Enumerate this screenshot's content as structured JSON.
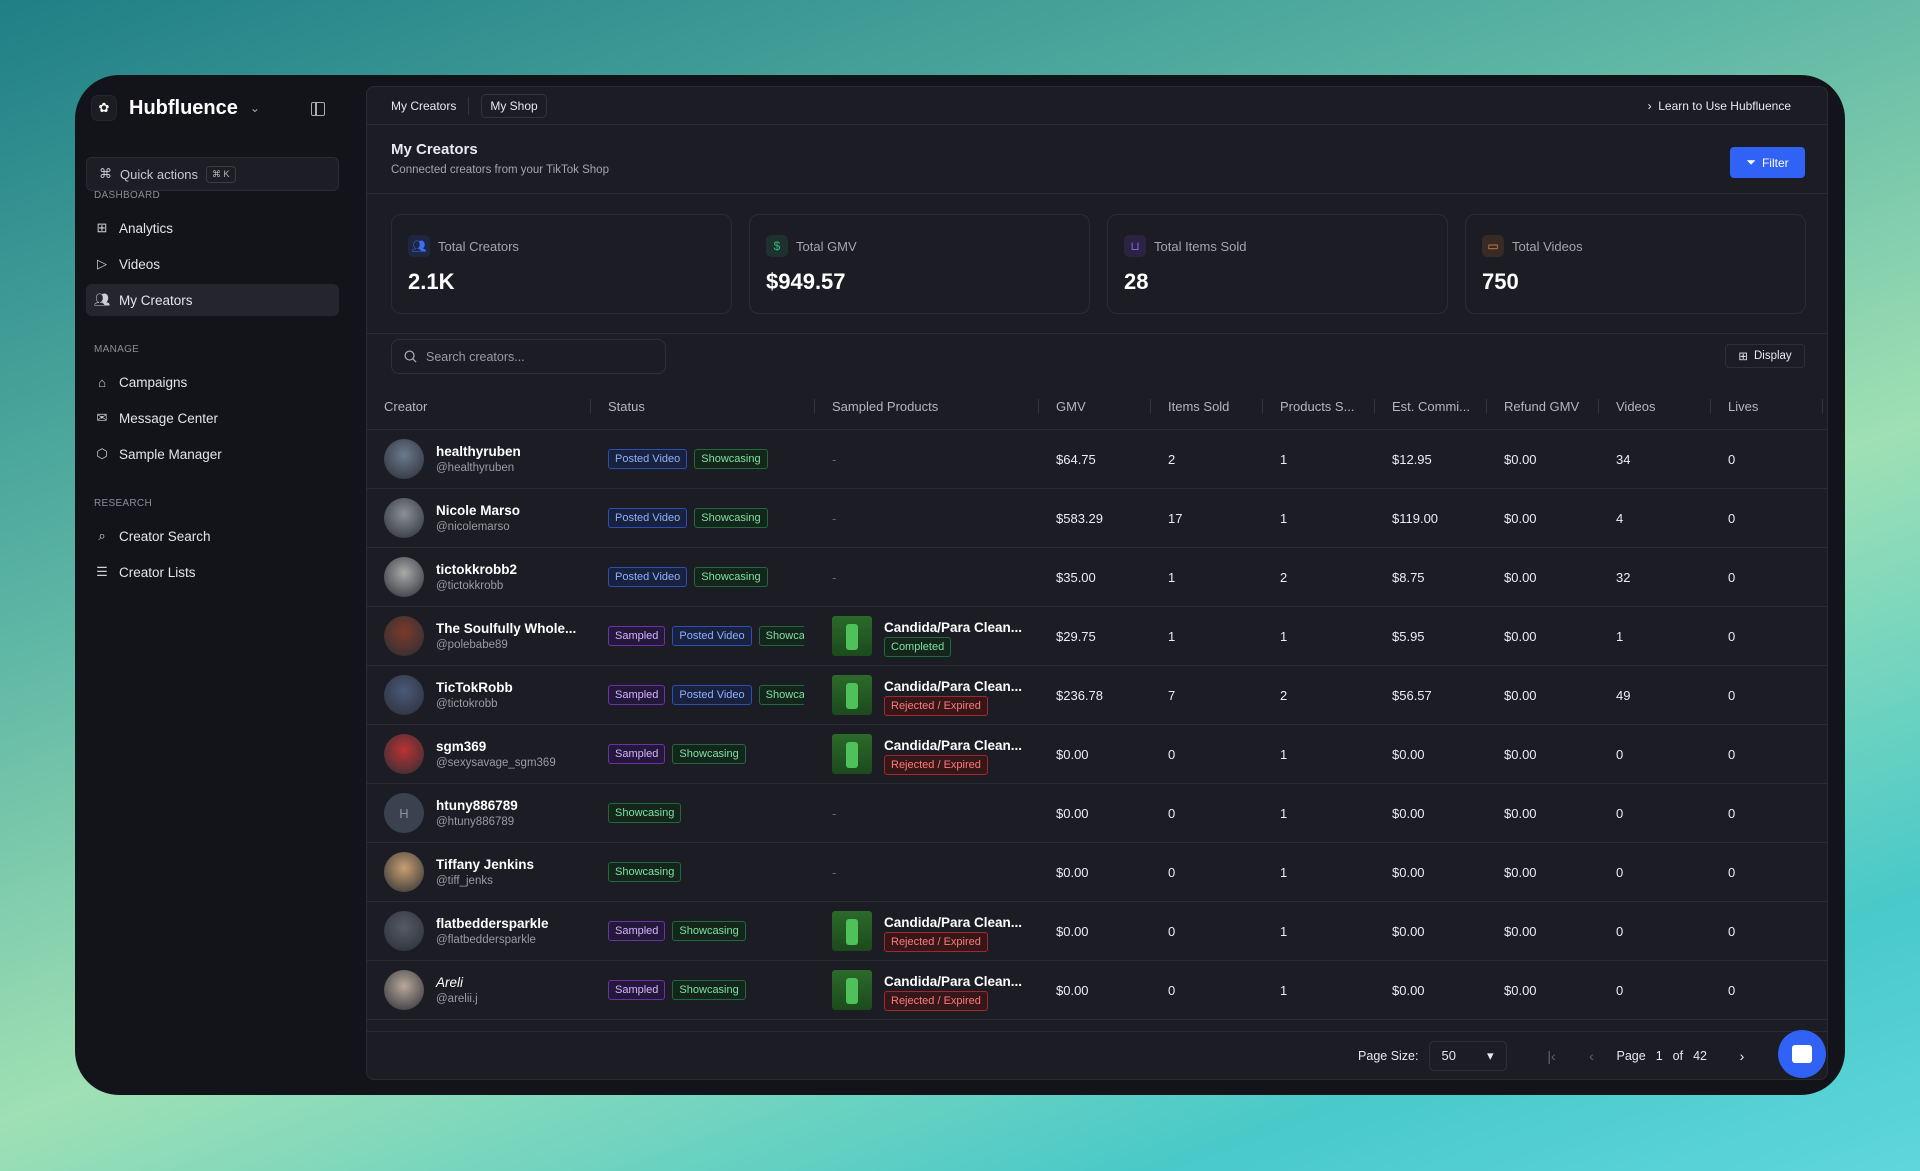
{
  "app": {
    "name": "Hubfluence",
    "quick_actions": "Quick actions",
    "shortcut": "⌘ K"
  },
  "sidebar": {
    "sections": [
      {
        "label": "DASHBOARD",
        "items": [
          {
            "label": "Analytics",
            "icon": "grid-icon"
          },
          {
            "label": "Videos",
            "icon": "play-icon"
          },
          {
            "label": "My Creators",
            "icon": "users-icon",
            "active": true
          }
        ]
      },
      {
        "label": "MANAGE",
        "items": [
          {
            "label": "Campaigns",
            "icon": "briefcase-icon"
          },
          {
            "label": "Message Center",
            "icon": "mail-icon"
          },
          {
            "label": "Sample Manager",
            "icon": "package-icon"
          }
        ]
      },
      {
        "label": "RESEARCH",
        "items": [
          {
            "label": "Creator Search",
            "icon": "search-icon"
          },
          {
            "label": "Creator Lists",
            "icon": "list-icon"
          }
        ]
      }
    ]
  },
  "tabs": [
    "My Creators",
    "My Shop"
  ],
  "learn_link": "Learn to Use Hubfluence",
  "header": {
    "title": "My Creators",
    "subtitle": "Connected creators from your TikTok Shop",
    "filter": "Filter"
  },
  "stats": [
    {
      "label": "Total Creators",
      "value": "2.1K",
      "color": "#3b6cf6",
      "icon": "users-icon"
    },
    {
      "label": "Total GMV",
      "value": "$949.57",
      "color": "#2fbf71",
      "icon": "dollar-icon"
    },
    {
      "label": "Total Items Sold",
      "value": "28",
      "color": "#8b5cf6",
      "icon": "shopping-bag-icon"
    },
    {
      "label": "Total Videos",
      "value": "750",
      "color": "#f08a3c",
      "icon": "video-icon"
    }
  ],
  "search": {
    "placeholder": "Search creators...",
    "value": ""
  },
  "display_label": "Display",
  "columns": [
    "Creator",
    "Status",
    "Sampled Products",
    "GMV",
    "Items Sold",
    "Products S...",
    "Est. Commi...",
    "Refund GMV",
    "Videos",
    "Lives"
  ],
  "rows": [
    {
      "name": "healthyruben",
      "handle": "@healthyruben",
      "status": [
        "Posted Video",
        "Showcasing"
      ],
      "product": null,
      "gmv": "$64.75",
      "items": "2",
      "products": "1",
      "commission": "$12.95",
      "refund": "$0.00",
      "videos": "34",
      "lives": "0"
    },
    {
      "name": "Nicole Marso",
      "handle": "@nicolemarso",
      "status": [
        "Posted Video",
        "Showcasing"
      ],
      "product": null,
      "gmv": "$583.29",
      "items": "17",
      "products": "1",
      "commission": "$119.00",
      "refund": "$0.00",
      "videos": "4",
      "lives": "0"
    },
    {
      "name": "tictokkrobb2",
      "handle": "@tictokkrobb",
      "status": [
        "Posted Video",
        "Showcasing"
      ],
      "product": null,
      "gmv": "$35.00",
      "items": "1",
      "products": "2",
      "commission": "$8.75",
      "refund": "$0.00",
      "videos": "32",
      "lives": "0"
    },
    {
      "name": "The Soulfully Whole...",
      "handle": "@polebabe89",
      "status": [
        "Sampled",
        "Posted Video",
        "Showcasing"
      ],
      "product": {
        "name": "Candida/Para Clean...",
        "status": "Completed"
      },
      "gmv": "$29.75",
      "items": "1",
      "products": "1",
      "commission": "$5.95",
      "refund": "$0.00",
      "videos": "1",
      "lives": "0"
    },
    {
      "name": "TicTokRobb",
      "handle": "@tictokrobb",
      "status": [
        "Sampled",
        "Posted Video",
        "Showcasing"
      ],
      "product": {
        "name": "Candida/Para Clean...",
        "status": "Rejected / Expired"
      },
      "gmv": "$236.78",
      "items": "7",
      "products": "2",
      "commission": "$56.57",
      "refund": "$0.00",
      "videos": "49",
      "lives": "0"
    },
    {
      "name": "sgm369",
      "handle": "@sexysavage_sgm369",
      "status": [
        "Sampled",
        "Showcasing"
      ],
      "product": {
        "name": "Candida/Para Clean...",
        "status": "Rejected / Expired"
      },
      "gmv": "$0.00",
      "items": "0",
      "products": "1",
      "commission": "$0.00",
      "refund": "$0.00",
      "videos": "0",
      "lives": "0"
    },
    {
      "name": "htuny886789",
      "handle": "@htuny886789",
      "initial": "H",
      "status": [
        "Showcasing"
      ],
      "product": null,
      "gmv": "$0.00",
      "items": "0",
      "products": "1",
      "commission": "$0.00",
      "refund": "$0.00",
      "videos": "0",
      "lives": "0"
    },
    {
      "name": "Tiffany Jenkins",
      "handle": "@tiff_jenks",
      "status": [
        "Showcasing"
      ],
      "product": null,
      "gmv": "$0.00",
      "items": "0",
      "products": "1",
      "commission": "$0.00",
      "refund": "$0.00",
      "videos": "0",
      "lives": "0"
    },
    {
      "name": "flatbeddersparkle",
      "handle": "@flatbeddersparkle",
      "status": [
        "Sampled",
        "Showcasing"
      ],
      "product": {
        "name": "Candida/Para Clean...",
        "status": "Rejected / Expired"
      },
      "gmv": "$0.00",
      "items": "0",
      "products": "1",
      "commission": "$0.00",
      "refund": "$0.00",
      "videos": "0",
      "lives": "0"
    },
    {
      "name": "Areli",
      "handle": "@arelii.j",
      "status": [
        "Sampled",
        "Showcasing"
      ],
      "product": {
        "name": "Candida/Para Clean...",
        "status": "Rejected / Expired"
      },
      "gmv": "$0.00",
      "items": "0",
      "products": "1",
      "commission": "$0.00",
      "refund": "$0.00",
      "videos": "0",
      "lives": "0"
    }
  ],
  "empty_cell": "-",
  "pagination": {
    "page_size_label": "Page Size:",
    "page_size": "50",
    "page_label": "Page",
    "page": "1",
    "of_label": "of",
    "total_pages": "42"
  }
}
